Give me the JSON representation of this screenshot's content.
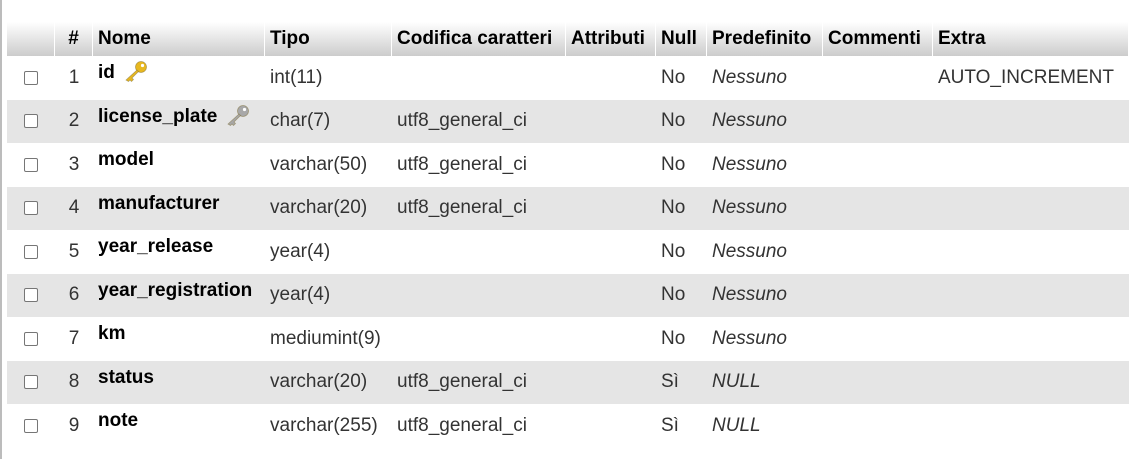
{
  "headers": {
    "num": "#",
    "name": "Nome",
    "type": "Tipo",
    "collation": "Codifica caratteri",
    "attributes": "Attributi",
    "null": "Null",
    "default": "Predefinito",
    "comments": "Commenti",
    "extra": "Extra"
  },
  "rows": [
    {
      "num": "1",
      "name": "id",
      "key_icon": "primary-key-icon",
      "type": "int(11)",
      "collation": "",
      "attributes": "",
      "null": "No",
      "default": "Nessuno",
      "comments": "",
      "extra": "AUTO_INCREMENT"
    },
    {
      "num": "2",
      "name": "license_plate",
      "key_icon": "unique-key-icon",
      "type": "char(7)",
      "collation": "utf8_general_ci",
      "attributes": "",
      "null": "No",
      "default": "Nessuno",
      "comments": "",
      "extra": ""
    },
    {
      "num": "3",
      "name": "model",
      "key_icon": "",
      "type": "varchar(50)",
      "collation": "utf8_general_ci",
      "attributes": "",
      "null": "No",
      "default": "Nessuno",
      "comments": "",
      "extra": ""
    },
    {
      "num": "4",
      "name": "manufacturer",
      "key_icon": "",
      "type": "varchar(20)",
      "collation": "utf8_general_ci",
      "attributes": "",
      "null": "No",
      "default": "Nessuno",
      "comments": "",
      "extra": ""
    },
    {
      "num": "5",
      "name": "year_release",
      "key_icon": "",
      "type": "year(4)",
      "collation": "",
      "attributes": "",
      "null": "No",
      "default": "Nessuno",
      "comments": "",
      "extra": ""
    },
    {
      "num": "6",
      "name": "year_registration",
      "key_icon": "",
      "type": "year(4)",
      "collation": "",
      "attributes": "",
      "null": "No",
      "default": "Nessuno",
      "comments": "",
      "extra": ""
    },
    {
      "num": "7",
      "name": "km",
      "key_icon": "",
      "type": "mediumint(9)",
      "collation": "",
      "attributes": "",
      "null": "No",
      "default": "Nessuno",
      "comments": "",
      "extra": ""
    },
    {
      "num": "8",
      "name": "status",
      "key_icon": "",
      "type": "varchar(20)",
      "collation": "utf8_general_ci",
      "attributes": "",
      "null": "Sì",
      "default": "NULL",
      "comments": "",
      "extra": ""
    },
    {
      "num": "9",
      "name": "note",
      "key_icon": "",
      "type": "varchar(255)",
      "collation": "utf8_general_ci",
      "attributes": "",
      "null": "Sì",
      "default": "NULL",
      "comments": "",
      "extra": ""
    }
  ],
  "colors": {
    "row_alt": "#e5e5e5",
    "primary_key_icon": "#e8b820",
    "unique_key_icon": "#a8a8a8"
  }
}
